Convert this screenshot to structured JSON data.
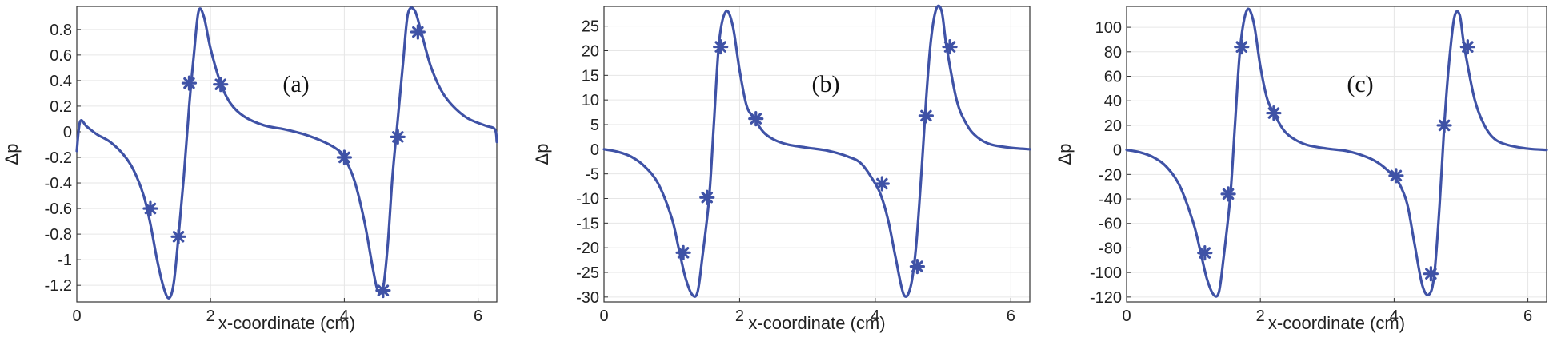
{
  "chart_data": [
    {
      "type": "line",
      "panel_label": "(a)",
      "xlabel": "x-coordinate (cm)",
      "ylabel": "Δp",
      "xlim": [
        0,
        6.28
      ],
      "ylim": [
        -1.33,
        0.98
      ],
      "xticks": [
        0,
        2,
        4,
        6
      ],
      "xtick_labels": [
        "0",
        "2",
        "4",
        "6"
      ],
      "yticks": [
        0.8,
        0.6,
        0.4,
        0.2,
        0,
        -0.2,
        -0.4,
        -0.6,
        -0.8,
        -1,
        -1.2
      ],
      "ytick_labels": [
        "0.8",
        "0.6",
        "0.4",
        "0.2",
        "0",
        "-0.2",
        "-0.4",
        "-0.6",
        "-0.8",
        "-1",
        "-1.2"
      ],
      "grid": true,
      "color": "#3f52a6",
      "series": [
        {
          "x": [
            0.0,
            0.05,
            0.15,
            0.3,
            0.5,
            0.7,
            0.85,
            1.0,
            1.1,
            1.2,
            1.3,
            1.38,
            1.45,
            1.52,
            1.6,
            1.68,
            1.75,
            1.82,
            1.9,
            2.0,
            2.15,
            2.3,
            2.5,
            2.8,
            3.1,
            3.4,
            3.7,
            3.9,
            4.0,
            4.15,
            4.3,
            4.42,
            4.5,
            4.58,
            4.65,
            4.72,
            4.8,
            4.88,
            4.95,
            5.05,
            5.15,
            5.3,
            5.5,
            5.8,
            6.1,
            6.25,
            6.28
          ],
          "y": [
            -0.15,
            0.08,
            0.04,
            -0.02,
            -0.08,
            -0.18,
            -0.3,
            -0.5,
            -0.72,
            -1.0,
            -1.22,
            -1.3,
            -1.18,
            -0.82,
            -0.35,
            0.2,
            0.6,
            0.94,
            0.9,
            0.65,
            0.38,
            0.22,
            0.12,
            0.05,
            0.02,
            -0.02,
            -0.08,
            -0.14,
            -0.2,
            -0.38,
            -0.7,
            -1.05,
            -1.24,
            -1.22,
            -0.88,
            -0.35,
            0.1,
            0.55,
            0.92,
            0.95,
            0.78,
            0.5,
            0.28,
            0.12,
            0.05,
            0.02,
            -0.08
          ]
        }
      ],
      "markers": {
        "x": [
          1.1,
          1.52,
          1.68,
          2.15,
          4.0,
          4.58,
          4.8,
          5.1
        ],
        "y": [
          -0.6,
          -0.82,
          0.38,
          0.37,
          -0.2,
          -1.24,
          -0.04,
          0.78
        ]
      }
    },
    {
      "type": "line",
      "panel_label": "(b)",
      "xlabel": "x-coordinate (cm)",
      "ylabel": "Δp",
      "xlim": [
        0,
        6.28
      ],
      "ylim": [
        -31,
        29
      ],
      "xticks": [
        0,
        2,
        4,
        6
      ],
      "xtick_labels": [
        "0",
        "2",
        "4",
        "6"
      ],
      "yticks": [
        25,
        20,
        15,
        10,
        5,
        0,
        -5,
        -10,
        -15,
        -20,
        -25,
        -30
      ],
      "ytick_labels": [
        "25",
        "20",
        "15",
        "10",
        "5",
        "0",
        "-5",
        "-10",
        "-15",
        "-20",
        "-25",
        "-30"
      ],
      "grid": true,
      "color": "#3f52a6",
      "series": [
        {
          "x": [
            0.0,
            0.2,
            0.4,
            0.6,
            0.8,
            1.0,
            1.1,
            1.2,
            1.3,
            1.38,
            1.45,
            1.55,
            1.62,
            1.7,
            1.8,
            1.9,
            2.0,
            2.1,
            2.2,
            2.35,
            2.5,
            2.7,
            3.0,
            3.3,
            3.6,
            3.8,
            4.0,
            4.1,
            4.2,
            4.3,
            4.42,
            4.52,
            4.6,
            4.68,
            4.75,
            4.82,
            4.9,
            4.98,
            5.05,
            5.2,
            5.35,
            5.5,
            5.7,
            6.0,
            6.28
          ],
          "y": [
            0,
            -0.5,
            -1.5,
            -3.5,
            -7,
            -14,
            -20,
            -26,
            -29.5,
            -29,
            -22,
            -10,
            5,
            22,
            28,
            25,
            16,
            9,
            6.5,
            3.5,
            2,
            1,
            0.3,
            -0.3,
            -1.5,
            -3,
            -7,
            -10,
            -15,
            -22,
            -29.5,
            -28,
            -20,
            -5,
            10,
            22,
            28.5,
            28,
            21,
            10,
            5,
            2.5,
            1,
            0.3,
            0
          ]
        }
      ],
      "markers": {
        "x": [
          1.17,
          1.52,
          1.72,
          2.24,
          4.1,
          4.62,
          4.75,
          5.1
        ],
        "y": [
          -21,
          -9.8,
          20.8,
          6.2,
          -7,
          -23.8,
          6.8,
          20.8
        ]
      }
    },
    {
      "type": "line",
      "panel_label": "(c)",
      "xlabel": "x-coordinate (cm)",
      "ylabel": "Δp",
      "xlim": [
        0,
        6.28
      ],
      "ylim": [
        -124,
        117
      ],
      "xticks": [
        0,
        2,
        4,
        6
      ],
      "xtick_labels": [
        "0",
        "2",
        "4",
        "6"
      ],
      "yticks": [
        100,
        80,
        60,
        40,
        20,
        0,
        -20,
        -40,
        -60,
        -80,
        -100,
        -120
      ],
      "ytick_labels": [
        "100",
        "80",
        "60",
        "40",
        "20",
        "0",
        "-20",
        "-40",
        "-60",
        "-80",
        "-100",
        "-120"
      ],
      "grid": true,
      "color": "#3f52a6",
      "series": [
        {
          "x": [
            0.0,
            0.2,
            0.4,
            0.6,
            0.8,
            1.0,
            1.1,
            1.2,
            1.3,
            1.38,
            1.45,
            1.55,
            1.62,
            1.7,
            1.8,
            1.9,
            2.0,
            2.1,
            2.2,
            2.35,
            2.5,
            2.7,
            3.0,
            3.3,
            3.6,
            3.8,
            4.0,
            4.1,
            4.2,
            4.3,
            4.42,
            4.52,
            4.6,
            4.68,
            4.75,
            4.82,
            4.9,
            4.98,
            5.05,
            5.2,
            5.35,
            5.5,
            5.7,
            6.0,
            6.28
          ],
          "y": [
            0,
            -2,
            -6,
            -14,
            -30,
            -60,
            -82,
            -105,
            -118,
            -116,
            -88,
            -38,
            20,
            84,
            114,
            104,
            68,
            42,
            30,
            16,
            9,
            4,
            1,
            -1,
            -6,
            -12,
            -22,
            -30,
            -45,
            -75,
            -110,
            -118,
            -102,
            -45,
            20,
            70,
            108,
            110,
            84,
            42,
            20,
            9,
            4,
            1,
            0
          ]
        }
      ],
      "markers": {
        "x": [
          1.17,
          1.52,
          1.72,
          2.2,
          4.03,
          4.55,
          4.75,
          5.1
        ],
        "y": [
          -84,
          -36,
          84,
          30,
          -21,
          -101,
          20,
          84
        ]
      }
    }
  ]
}
